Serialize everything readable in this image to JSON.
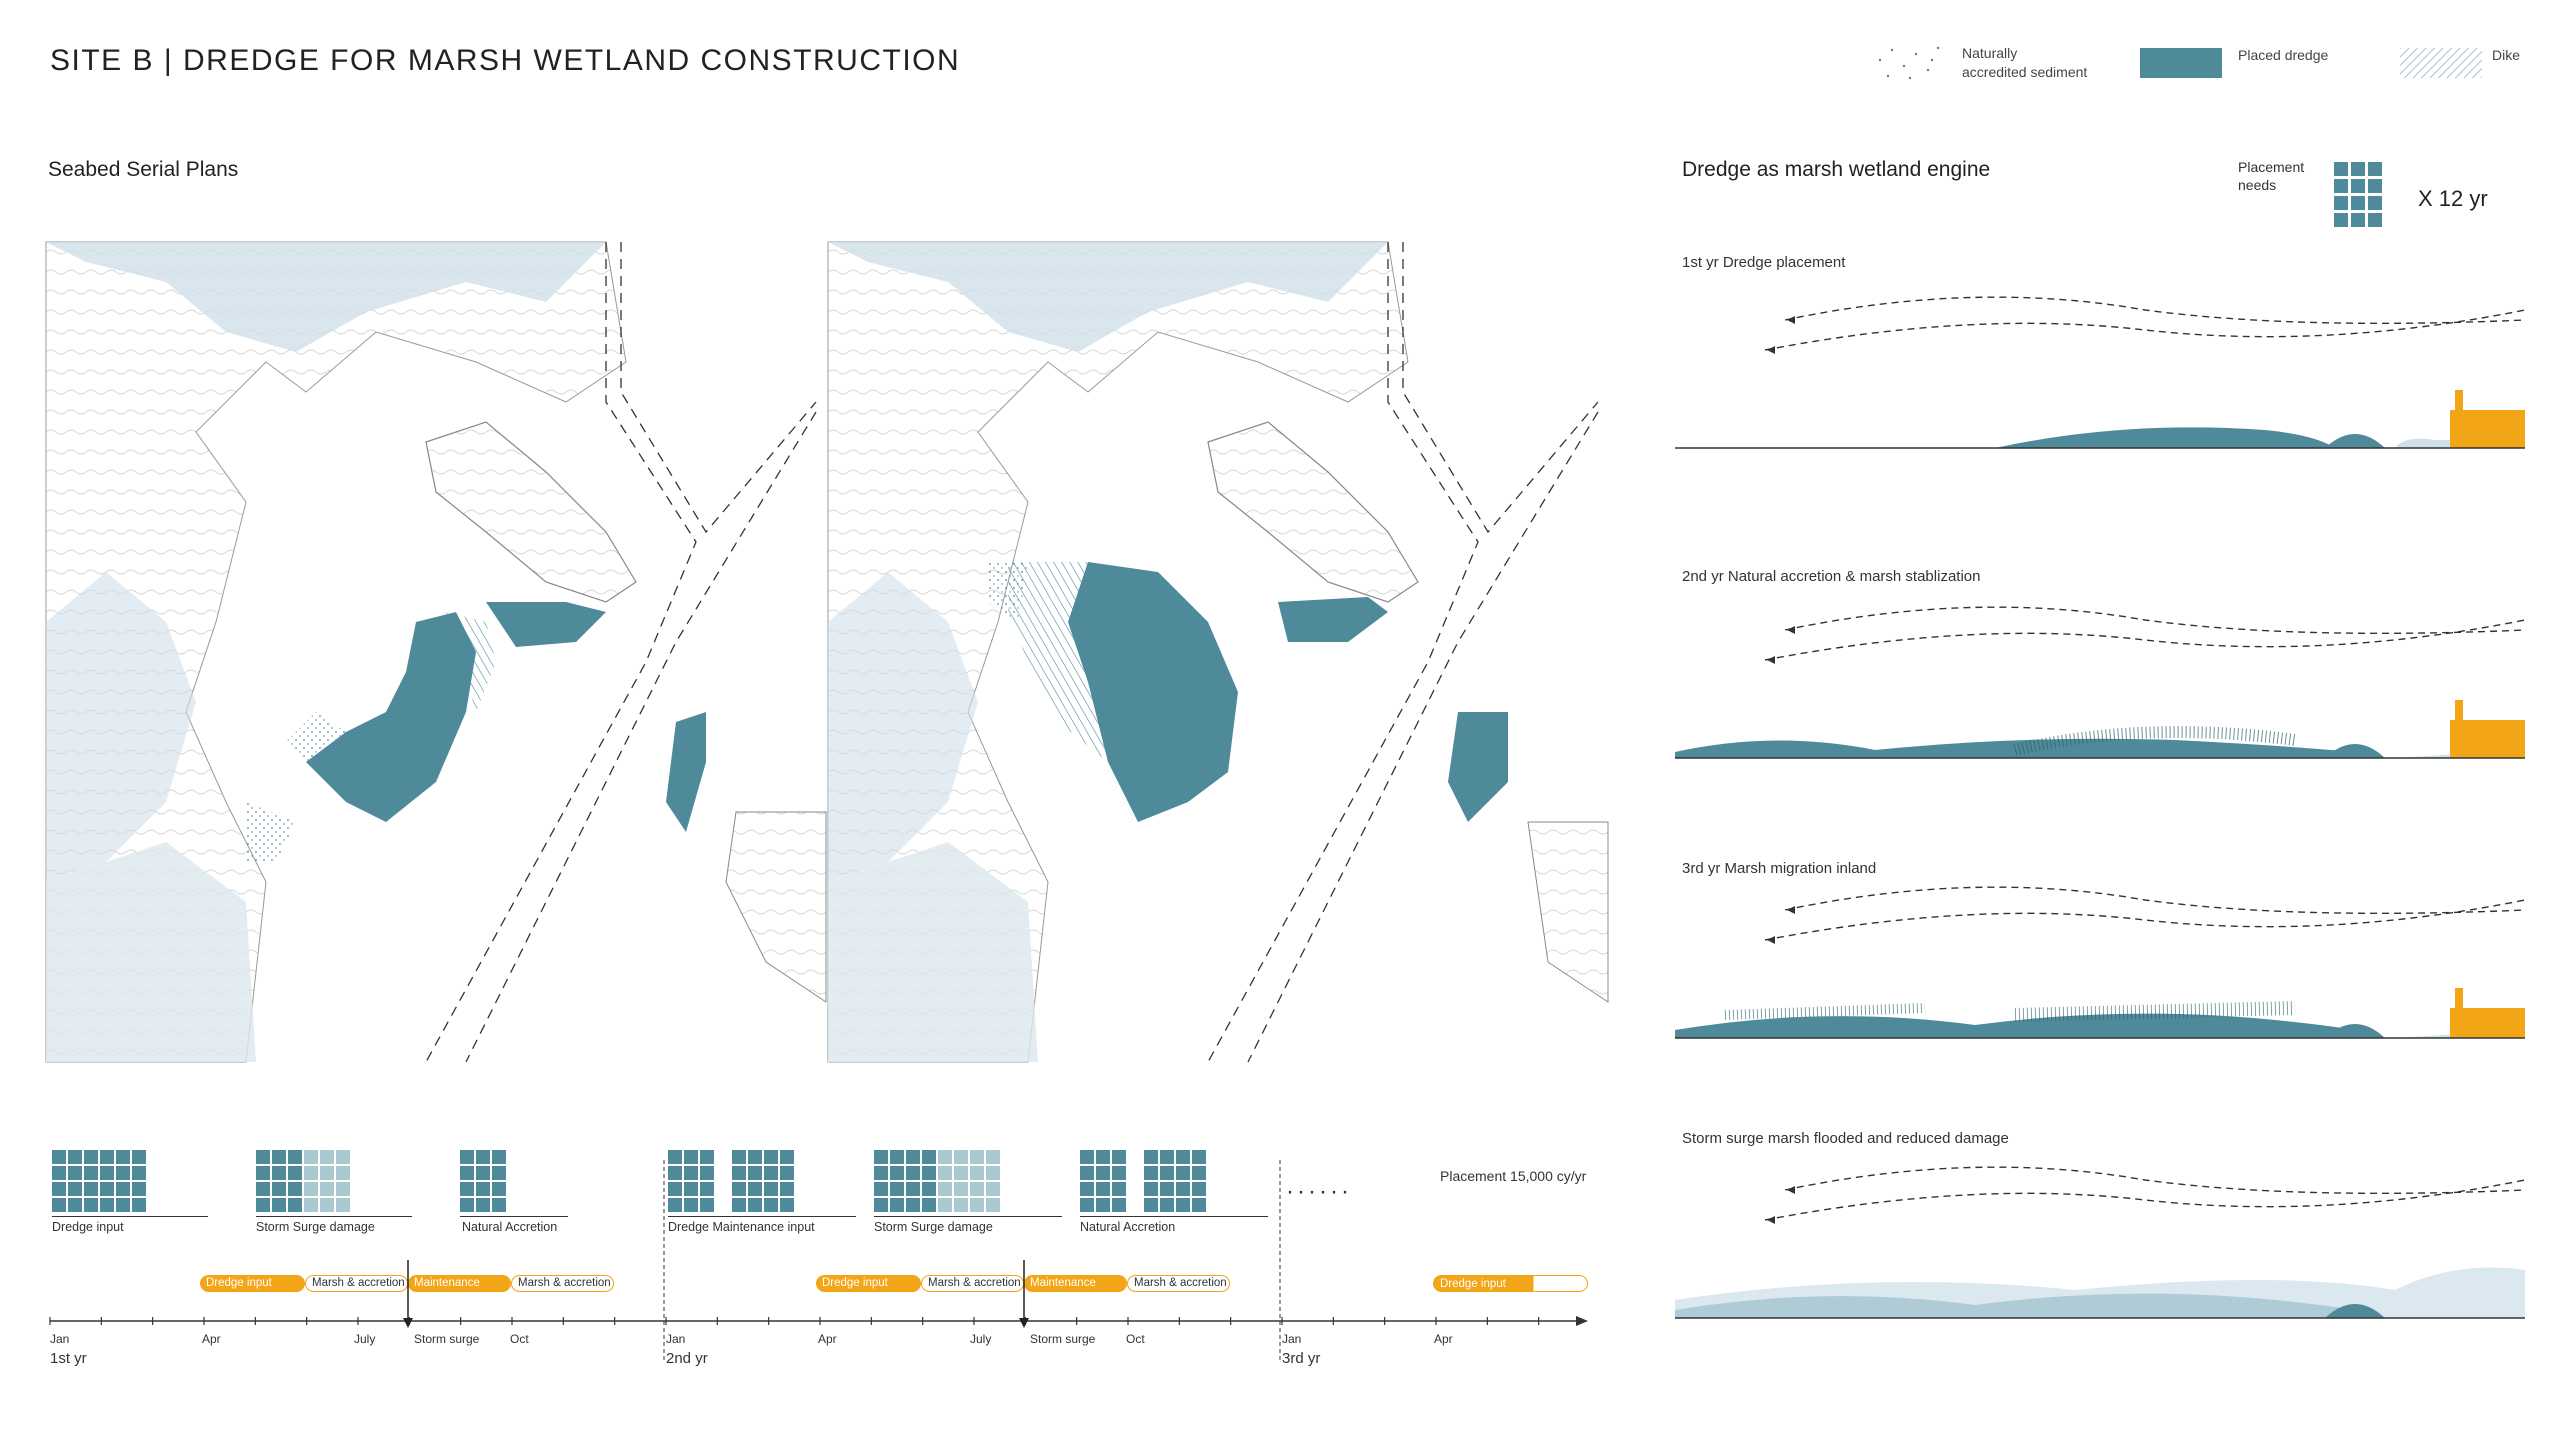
{
  "title": "SITE B | DREDGE FOR MARSH WETLAND CONSTRUCTION",
  "legend": {
    "accreted": "Naturally\naccredited sediment",
    "placed": "Placed dredge",
    "dike": "Dike"
  },
  "left_section_title": "Seabed Serial Plans",
  "right_section_title": "Dredge as marsh wetland engine",
  "placement": {
    "label": "Placement\nneeds",
    "multiplier": "X 12 yr"
  },
  "sections": [
    {
      "label": "1st yr Dredge placement"
    },
    {
      "label": "2nd yr Natural accretion & marsh stablization"
    },
    {
      "label": "3rd yr  Marsh migration inland"
    },
    {
      "label": "Storm surge marsh flooded and reduced damage"
    }
  ],
  "grid_captions": [
    "Dredge input",
    "Storm Surge damage",
    "Natural Accretion",
    "Dredge Maintenance input",
    "Storm Surge damage",
    "Natural Accretion"
  ],
  "placement_rate": "Placement 15,000 cy/yr",
  "pills": [
    {
      "text": "Dredge input",
      "style": "fill"
    },
    {
      "text": "Marsh & accretion",
      "style": "outline"
    },
    {
      "text": "Maintenance",
      "style": "fill"
    },
    {
      "text": "Marsh & accretion",
      "style": "outline"
    },
    {
      "text": "Dredge input",
      "style": "fill"
    },
    {
      "text": "Marsh & accretion",
      "style": "outline"
    },
    {
      "text": "Maintenance",
      "style": "fill"
    },
    {
      "text": "Marsh & accretion",
      "style": "outline"
    },
    {
      "text": "Dredge input",
      "style": "fill"
    }
  ],
  "ticks": [
    "Jan",
    "Apr",
    "July",
    "Storm surge",
    "Oct",
    "Jan",
    "Apr",
    "July",
    "Storm surge",
    "Oct",
    "Jan",
    "Apr"
  ],
  "years": [
    "1st yr",
    "2nd yr",
    "3rd yr"
  ],
  "colors": {
    "dredge": "#4f8a9a",
    "dredge_light": "#a9c7cf",
    "water": "#cfe0ea",
    "orange": "#f2a516",
    "line": "#333333"
  }
}
